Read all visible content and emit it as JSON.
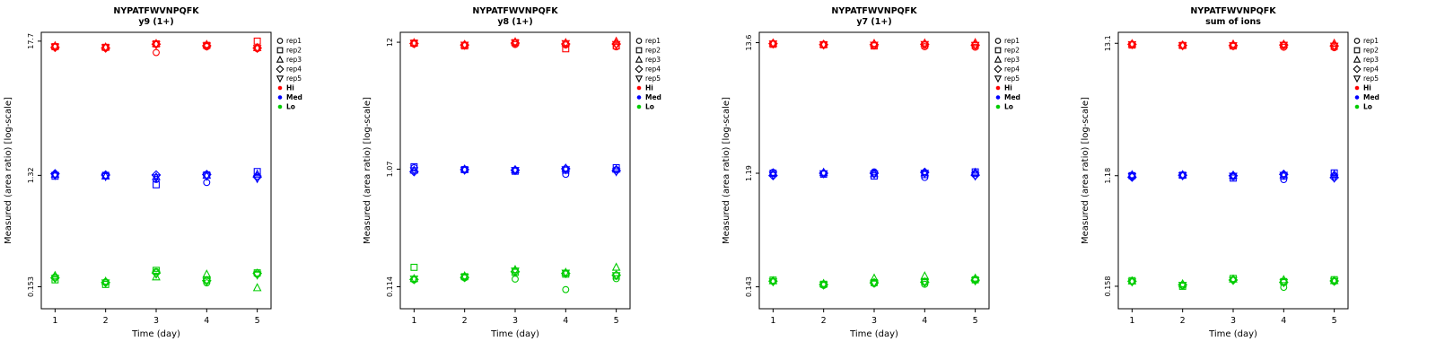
{
  "figure": {
    "peptide": "NYPATFWVNPQFK",
    "xlabel": "Time (day)",
    "ylabel": "Measured (area ratio) [log-scale]"
  },
  "legend": {
    "reps": [
      {
        "label": "rep1",
        "shape": "circle"
      },
      {
        "label": "rep2",
        "shape": "square"
      },
      {
        "label": "rep3",
        "shape": "triangle-up"
      },
      {
        "label": "rep4",
        "shape": "diamond"
      },
      {
        "label": "rep5",
        "shape": "triangle-down"
      }
    ],
    "levels": [
      {
        "label": "Hi",
        "color": "#FF0000"
      },
      {
        "label": "Med",
        "color": "#0000FF"
      },
      {
        "label": "Lo",
        "color": "#00CC00"
      }
    ]
  },
  "chart_data": [
    {
      "type": "scatter",
      "title": "NYPATFWVNPQFK",
      "subtitle": "y9 (1+)",
      "xlabel": "Time (day)",
      "ylabel": "Measured (area ratio) [log-scale]",
      "x_ticks": [
        1,
        2,
        3,
        4,
        5
      ],
      "y_scale": "log",
      "ylim": [
        0.1,
        21
      ],
      "y_ticks": [
        {
          "value": 17.7,
          "label": "17.7"
        },
        {
          "value": 1.32,
          "label": "1.32"
        },
        {
          "value": 0.153,
          "label": "0.153"
        }
      ],
      "series": [
        {
          "name": "Hi",
          "color": "#FF0000",
          "reps": [
            [
              15.8,
              15.6,
              14.2,
              15.9,
              15.3
            ],
            [
              15.9,
              15.7,
              16.8,
              16.3,
              17.7
            ],
            [
              16.2,
              15.8,
              16.9,
              16.6,
              15.6
            ],
            [
              15.7,
              15.5,
              16.7,
              16.2,
              15.5
            ],
            [
              15.8,
              15.6,
              16.6,
              16.1,
              15.4
            ]
          ]
        },
        {
          "name": "Med",
          "color": "#0000FF",
          "reps": [
            [
              1.33,
              1.31,
              1.22,
              1.15,
              1.3
            ],
            [
              1.3,
              1.32,
              1.1,
              1.33,
              1.42
            ],
            [
              1.35,
              1.3,
              1.28,
              1.32,
              1.35
            ],
            [
              1.36,
              1.33,
              1.33,
              1.34,
              1.28
            ],
            [
              1.32,
              1.29,
              1.26,
              1.3,
              1.24
            ]
          ]
        },
        {
          "name": "Lo",
          "color": "#00CC00",
          "reps": [
            [
              0.185,
              0.168,
              0.205,
              0.165,
              0.195
            ],
            [
              0.175,
              0.16,
              0.21,
              0.175,
              0.2
            ],
            [
              0.19,
              0.17,
              0.185,
              0.195,
              0.15
            ],
            [
              0.182,
              0.166,
              0.2,
              0.172,
              0.198
            ],
            [
              0.18,
              0.165,
              0.195,
              0.17,
              0.192
            ]
          ]
        }
      ]
    },
    {
      "type": "scatter",
      "title": "NYPATFWVNPQFK",
      "subtitle": "y8 (1+)",
      "xlabel": "Time (day)",
      "ylabel": "Measured (area ratio) [log-scale]",
      "x_ticks": [
        1,
        2,
        3,
        4,
        5
      ],
      "y_scale": "log",
      "ylim": [
        0.075,
        14.5
      ],
      "y_ticks": [
        {
          "value": 12,
          "label": "12"
        },
        {
          "value": 1.07,
          "label": "1.07"
        },
        {
          "value": 0.114,
          "label": "0.114"
        }
      ],
      "series": [
        {
          "name": "Hi",
          "color": "#FF0000",
          "reps": [
            [
              11.6,
              11.3,
              11.5,
              11.4,
              11.0
            ],
            [
              11.8,
              11.2,
              11.9,
              10.6,
              11.2
            ],
            [
              11.9,
              11.5,
              12.1,
              11.9,
              12.2
            ],
            [
              11.7,
              11.4,
              11.8,
              11.6,
              11.6
            ],
            [
              11.75,
              11.35,
              11.85,
              11.7,
              11.5
            ]
          ]
        },
        {
          "name": "Med",
          "color": "#0000FF",
          "reps": [
            [
              1.1,
              1.05,
              1.04,
              0.97,
              1.06
            ],
            [
              1.12,
              1.06,
              1.03,
              1.05,
              1.1
            ],
            [
              1.05,
              1.07,
              1.06,
              1.09,
              1.07
            ],
            [
              1.02,
              1.06,
              1.05,
              1.08,
              1.04
            ],
            [
              1.04,
              1.05,
              1.045,
              1.06,
              1.02
            ]
          ]
        },
        {
          "name": "Lo",
          "color": "#00CC00",
          "reps": [
            [
              0.13,
              0.135,
              0.132,
              0.108,
              0.133
            ],
            [
              0.165,
              0.138,
              0.15,
              0.145,
              0.14
            ],
            [
              0.133,
              0.14,
              0.158,
              0.15,
              0.165
            ],
            [
              0.131,
              0.136,
              0.152,
              0.147,
              0.142
            ],
            [
              0.132,
              0.137,
              0.154,
              0.148,
              0.141
            ]
          ]
        }
      ]
    },
    {
      "type": "scatter",
      "title": "NYPATFWVNPQFK",
      "subtitle": "y7 (1+)",
      "xlabel": "Time (day)",
      "ylabel": "Measured (area ratio) [log-scale]",
      "x_ticks": [
        1,
        2,
        3,
        4,
        5
      ],
      "y_scale": "log",
      "ylim": [
        0.095,
        16.5
      ],
      "y_ticks": [
        {
          "value": 13.6,
          "label": "13.6"
        },
        {
          "value": 1.19,
          "label": "1.19"
        },
        {
          "value": 0.143,
          "label": "0.143"
        }
      ],
      "series": [
        {
          "name": "Hi",
          "color": "#FF0000",
          "reps": [
            [
              13.3,
              13.0,
              12.9,
              12.6,
              12.5
            ],
            [
              13.2,
              13.1,
              12.8,
              13.0,
              12.9
            ],
            [
              13.5,
              13.2,
              13.4,
              13.5,
              13.6
            ],
            [
              13.35,
              13.1,
              13.1,
              13.2,
              13.0
            ],
            [
              13.3,
              13.05,
              13.0,
              13.15,
              12.95
            ]
          ]
        },
        {
          "name": "Med",
          "color": "#0000FF",
          "reps": [
            [
              1.21,
              1.18,
              1.22,
              1.1,
              1.19
            ],
            [
              1.19,
              1.17,
              1.13,
              1.16,
              1.22
            ],
            [
              1.2,
              1.21,
              1.18,
              1.2,
              1.21
            ],
            [
              1.14,
              1.19,
              1.19,
              1.21,
              1.15
            ],
            [
              1.15,
              1.18,
              1.17,
              1.19,
              1.13
            ]
          ]
        },
        {
          "name": "Lo",
          "color": "#00CC00",
          "reps": [
            [
              0.158,
              0.147,
              0.152,
              0.15,
              0.165
            ],
            [
              0.162,
              0.15,
              0.155,
              0.158,
              0.163
            ],
            [
              0.16,
              0.152,
              0.168,
              0.175,
              0.168
            ],
            [
              0.159,
              0.149,
              0.154,
              0.156,
              0.162
            ],
            [
              0.157,
              0.148,
              0.153,
              0.155,
              0.16
            ]
          ]
        }
      ]
    },
    {
      "type": "scatter",
      "title": "NYPATFWVNPQFK",
      "subtitle": "sum of ions",
      "xlabel": "Time (day)",
      "ylabel": "Measured (area ratio) [log-scale]",
      "x_ticks": [
        1,
        2,
        3,
        4,
        5
      ],
      "y_scale": "log",
      "ylim": [
        0.105,
        16
      ],
      "y_ticks": [
        {
          "value": 13.1,
          "label": "13.1"
        },
        {
          "value": 1.18,
          "label": "1.18"
        },
        {
          "value": 0.158,
          "label": "0.158"
        }
      ],
      "series": [
        {
          "name": "Hi",
          "color": "#FF0000",
          "reps": [
            [
              12.8,
              12.5,
              12.4,
              12.2,
              12.1
            ],
            [
              12.7,
              12.6,
              12.5,
              12.6,
              12.4
            ],
            [
              13.0,
              12.7,
              12.9,
              12.9,
              13.1
            ],
            [
              12.85,
              12.6,
              12.6,
              12.7,
              12.5
            ],
            [
              12.8,
              12.55,
              12.55,
              12.65,
              12.45
            ]
          ]
        },
        {
          "name": "Med",
          "color": "#0000FF",
          "reps": [
            [
              1.19,
              1.18,
              1.16,
              1.1,
              1.18
            ],
            [
              1.18,
              1.19,
              1.13,
              1.17,
              1.24
            ],
            [
              1.2,
              1.2,
              1.19,
              1.2,
              1.21
            ],
            [
              1.15,
              1.19,
              1.18,
              1.21,
              1.14
            ],
            [
              1.16,
              1.18,
              1.17,
              1.19,
              1.13
            ]
          ]
        },
        {
          "name": "Lo",
          "color": "#00CC00",
          "reps": [
            [
              0.172,
              0.16,
              0.178,
              0.155,
              0.172
            ],
            [
              0.175,
              0.158,
              0.182,
              0.172,
              0.178
            ],
            [
              0.174,
              0.165,
              0.18,
              0.178,
              0.175
            ],
            [
              0.173,
              0.162,
              0.177,
              0.17,
              0.174
            ],
            [
              0.171,
              0.161,
              0.176,
              0.169,
              0.173
            ]
          ]
        }
      ]
    }
  ]
}
